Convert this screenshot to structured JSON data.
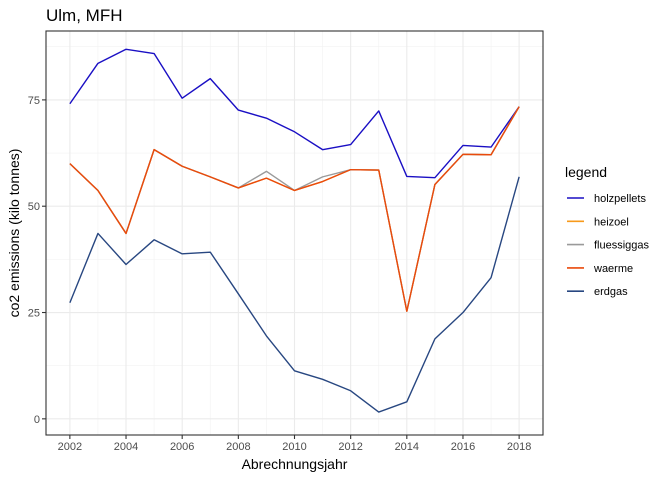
{
  "chart_data": {
    "type": "line",
    "title": "Ulm, MFH",
    "xlabel": "Abrechnungsjahr",
    "ylabel": "co2 emissions (kilo tonnes)",
    "xlim": [
      2001.15,
      2018.85
    ],
    "ylim": [
      -3.8,
      91.2
    ],
    "x_ticks": [
      2002,
      2004,
      2006,
      2008,
      2010,
      2012,
      2014,
      2016,
      2018
    ],
    "x_tick_labels": [
      "2002",
      "2004",
      "2006",
      "2008",
      "2010",
      "2012",
      "2014",
      "2016",
      "2018"
    ],
    "y_ticks": [
      0,
      25,
      50,
      75
    ],
    "y_tick_labels": [
      "0",
      "25",
      "50",
      "75"
    ],
    "grid": true,
    "legend_title": "legend",
    "legend_position": "right",
    "x": [
      2002,
      2003,
      2004,
      2005,
      2006,
      2007,
      2008,
      2009,
      2010,
      2011,
      2012,
      2013,
      2014,
      2015,
      2016,
      2017,
      2018
    ],
    "series": [
      {
        "name": "holzpellets",
        "color": "#1a0fc4",
        "values": [
          74.1,
          83.6,
          86.9,
          85.9,
          75.4,
          80.0,
          72.6,
          70.7,
          67.5,
          63.3,
          64.5,
          72.4,
          57.0,
          56.7,
          64.3,
          63.9,
          73.4
        ]
      },
      {
        "name": "heizoel",
        "color": "#f79a1b",
        "values": [
          60.0,
          53.7,
          43.6,
          63.3,
          59.4,
          56.9,
          54.3,
          56.6,
          53.7,
          55.8,
          58.6,
          58.5,
          25.3,
          55.1,
          62.2,
          62.1,
          73.4
        ]
      },
      {
        "name": "fluessiggas",
        "color": "#9a9a9a",
        "values": [
          60.0,
          53.7,
          43.6,
          63.3,
          59.4,
          56.9,
          54.3,
          58.2,
          53.7,
          56.9,
          58.6,
          58.5,
          25.3,
          55.1,
          62.2,
          62.1,
          73.4
        ]
      },
      {
        "name": "waerme",
        "color": "#ea4a0c",
        "values": [
          60.0,
          53.7,
          43.6,
          63.3,
          59.4,
          56.9,
          54.3,
          56.6,
          53.7,
          55.8,
          58.6,
          58.5,
          25.3,
          55.1,
          62.2,
          62.1,
          73.4
        ]
      },
      {
        "name": "erdgas",
        "color": "#284781",
        "values": [
          27.3,
          43.6,
          36.3,
          42.1,
          38.8,
          39.2,
          29.4,
          19.5,
          11.3,
          9.3,
          6.6,
          1.6,
          4.0,
          18.8,
          25.0,
          33.2,
          56.9
        ]
      }
    ]
  }
}
